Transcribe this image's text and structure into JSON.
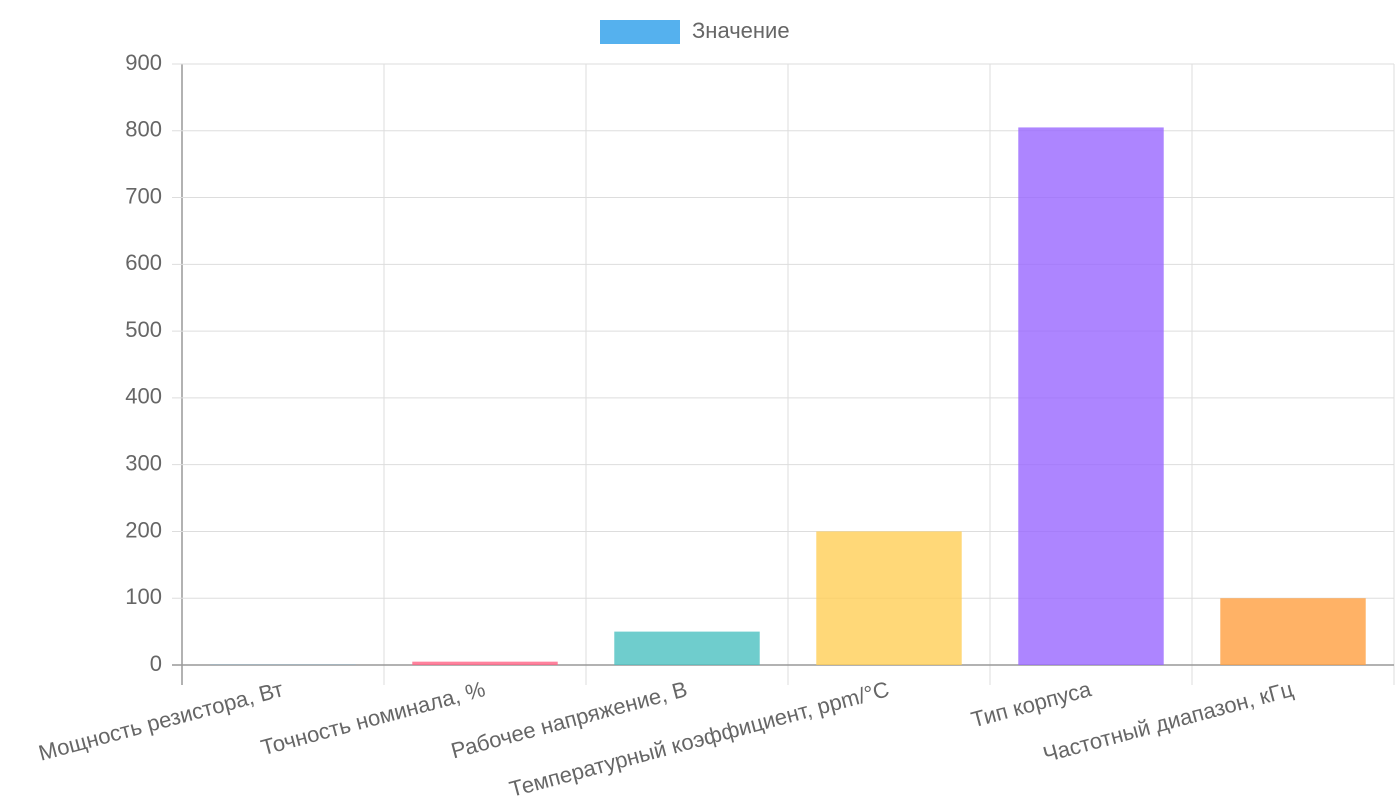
{
  "chart_data": {
    "type": "bar",
    "categories": [
      "Мощность резистора, Вт",
      "Точность номинала, %",
      "Рабочее напряжение, В",
      "Температурный коэффициент, ppm/°C",
      "Тип корпуса",
      "Частотный диапазон, кГц"
    ],
    "series": [
      {
        "name": "Значение",
        "color": "#55b1ee",
        "values": [
          0.25,
          5,
          50,
          200,
          805,
          100
        ]
      }
    ],
    "colors": [
      "rgba(54,162,235,0.8)",
      "rgba(255,99,132,0.8)",
      "rgba(75,192,192,0.8)",
      "rgba(255,206,86,0.8)",
      "rgba(153,102,255,0.8)",
      "rgba(255,159,64,0.8)"
    ],
    "ylim": [
      0,
      900
    ],
    "yticks": [
      0,
      100,
      200,
      300,
      400,
      500,
      600,
      700,
      800,
      900
    ],
    "grid": true,
    "legend": "top"
  }
}
